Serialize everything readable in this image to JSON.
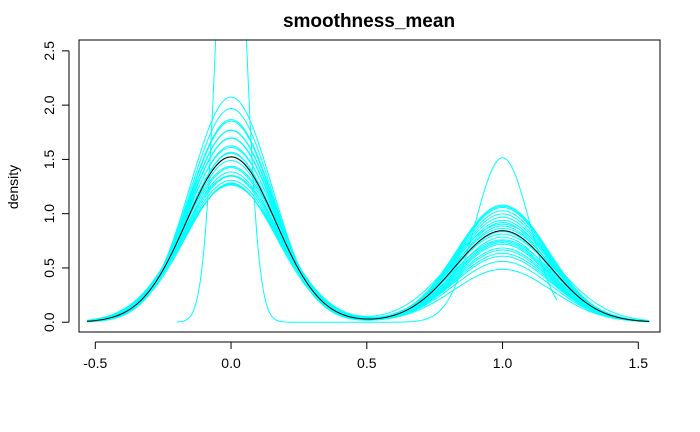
{
  "chart_data": {
    "type": "line",
    "title": "smoothness_mean",
    "xlabel": "",
    "ylabel": "density",
    "xlim": [
      -0.56,
      1.58
    ],
    "ylim": [
      -0.09,
      2.6
    ],
    "xticks": [
      -0.5,
      0.0,
      0.5,
      1.0,
      1.5
    ],
    "xtick_labels": [
      "-0.5",
      "0.0",
      "0.5",
      "1.0",
      "1.5"
    ],
    "yticks": [
      0.0,
      0.5,
      1.0,
      1.5,
      2.0,
      2.5
    ],
    "ytick_labels": [
      "0.0",
      "0.5",
      "1.0",
      "1.5",
      "2.0",
      "2.5"
    ],
    "grid": false,
    "legend": "none",
    "colors": {
      "imputed": "#00ffff",
      "observed": "#000000"
    },
    "curve_family": {
      "description_of_curves": "bimodal density curves",
      "observed": {
        "w0": 0.63,
        "mu0": 0.0,
        "s0": 0.165,
        "w1": 0.37,
        "mu1": 1.0,
        "s1": 0.175
      },
      "imputed": [
        {
          "w0": 0.78,
          "mu0": 0.0,
          "s0": 0.15,
          "w1": 0.22,
          "mu1": 1.0,
          "s1": 0.18
        },
        {
          "w0": 0.75,
          "mu0": 0.0,
          "s0": 0.152,
          "w1": 0.25,
          "mu1": 1.0,
          "s1": 0.178
        },
        {
          "w0": 0.72,
          "mu0": 0.0,
          "s0": 0.155,
          "w1": 0.28,
          "mu1": 1.0,
          "s1": 0.176
        },
        {
          "w0": 0.7,
          "mu0": 0.0,
          "s0": 0.158,
          "w1": 0.3,
          "mu1": 1.0,
          "s1": 0.175
        },
        {
          "w0": 0.68,
          "mu0": 0.0,
          "s0": 0.16,
          "w1": 0.32,
          "mu1": 1.0,
          "s1": 0.174
        },
        {
          "w0": 0.66,
          "mu0": 0.0,
          "s0": 0.162,
          "w1": 0.34,
          "mu1": 1.0,
          "s1": 0.173
        },
        {
          "w0": 0.64,
          "mu0": 0.0,
          "s0": 0.164,
          "w1": 0.36,
          "mu1": 1.0,
          "s1": 0.172
        },
        {
          "w0": 0.62,
          "mu0": 0.0,
          "s0": 0.166,
          "w1": 0.38,
          "mu1": 1.0,
          "s1": 0.171
        },
        {
          "w0": 0.6,
          "mu0": 0.0,
          "s0": 0.168,
          "w1": 0.4,
          "mu1": 1.0,
          "s1": 0.17
        },
        {
          "w0": 0.59,
          "mu0": 0.0,
          "s0": 0.17,
          "w1": 0.41,
          "mu1": 1.0,
          "s1": 0.169
        },
        {
          "w0": 0.58,
          "mu0": 0.0,
          "s0": 0.172,
          "w1": 0.42,
          "mu1": 1.0,
          "s1": 0.168
        },
        {
          "w0": 0.57,
          "mu0": 0.0,
          "s0": 0.174,
          "w1": 0.43,
          "mu1": 1.0,
          "s1": 0.167
        },
        {
          "w0": 0.56,
          "mu0": 0.0,
          "s0": 0.176,
          "w1": 0.44,
          "mu1": 1.0,
          "s1": 0.166
        },
        {
          "w0": 0.55,
          "mu0": 0.0,
          "s0": 0.172,
          "w1": 0.45,
          "mu1": 1.0,
          "s1": 0.168
        },
        {
          "w0": 0.54,
          "mu0": 0.0,
          "s0": 0.168,
          "w1": 0.46,
          "mu1": 1.0,
          "s1": 0.17
        },
        {
          "w0": 0.61,
          "mu0": 0.0,
          "s0": 0.18,
          "w1": 0.39,
          "mu1": 1.0,
          "s1": 0.18
        },
        {
          "w0": 0.63,
          "mu0": 0.0,
          "s0": 0.175,
          "w1": 0.37,
          "mu1": 1.0,
          "s1": 0.182
        },
        {
          "w0": 0.65,
          "mu0": 0.0,
          "s0": 0.17,
          "w1": 0.35,
          "mu1": 1.0,
          "s1": 0.184
        },
        {
          "w0": 0.67,
          "mu0": 0.0,
          "s0": 0.166,
          "w1": 0.33,
          "mu1": 1.0,
          "s1": 0.176
        },
        {
          "w0": 0.69,
          "mu0": 0.0,
          "s0": 0.162,
          "w1": 0.31,
          "mu1": 1.0,
          "s1": 0.172
        },
        {
          "w0": 0.71,
          "mu0": 0.0,
          "s0": 0.16,
          "w1": 0.29,
          "mu1": 1.0,
          "s1": 0.174
        },
        {
          "w0": 0.73,
          "mu0": 0.0,
          "s0": 0.156,
          "w1": 0.27,
          "mu1": 1.0,
          "s1": 0.177
        },
        {
          "w0": 0.57,
          "mu0": 0.0,
          "s0": 0.18,
          "w1": 0.43,
          "mu1": 1.0,
          "s1": 0.19
        },
        {
          "w0": 0.62,
          "mu0": 0.0,
          "s0": 0.158,
          "w1": 0.38,
          "mu1": 1.0,
          "s1": 0.165
        }
      ],
      "narrow_imputed": {
        "w0": 0.62,
        "mu0": 0.0,
        "s0": 0.05,
        "w1": 0.38,
        "mu1": 1.0,
        "s1": 0.1,
        "xmin": -0.2,
        "xmax": 1.2
      }
    }
  }
}
